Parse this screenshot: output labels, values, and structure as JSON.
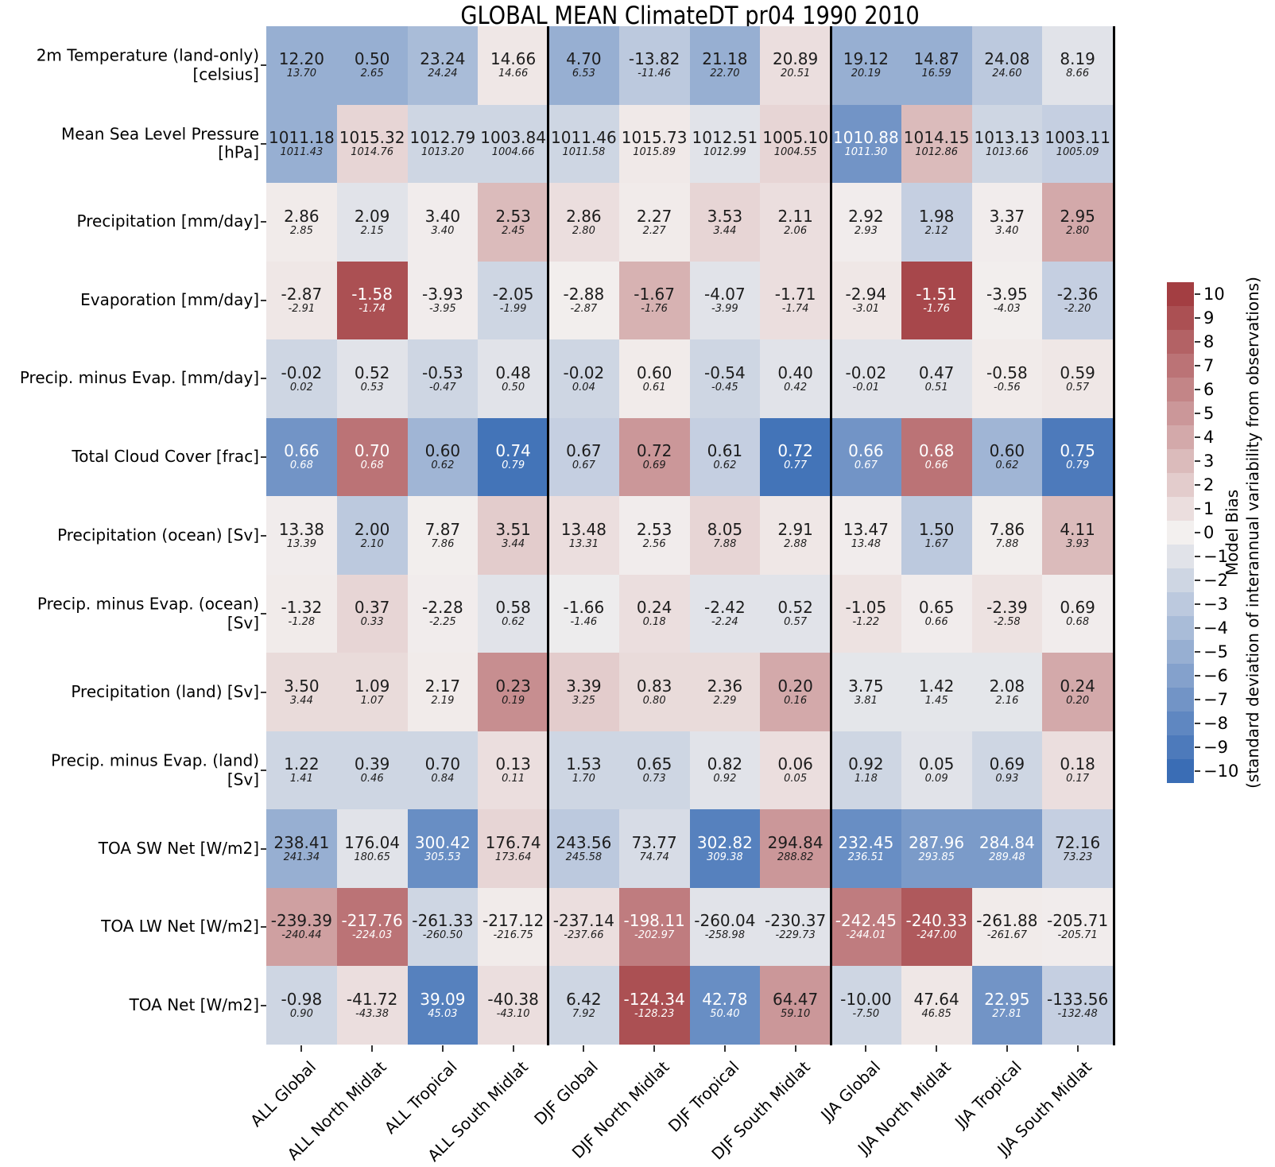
{
  "title": "GLOBAL MEAN ClimateDT pr04 1990 2010",
  "chart_data": {
    "type": "heatmap",
    "title": "GLOBAL MEAN ClimateDT pr04 1990 2010",
    "value_note": "each cell: top = model value, bottom italic = observed value; color = model bias in standard deviations of interannual variability",
    "columns": [
      "ALL Global",
      "ALL North Midlat",
      "ALL Tropical",
      "ALL South Midlat",
      "DJF Global",
      "DJF North Midlat",
      "DJF Tropical",
      "DJF South Midlat",
      "JJA Global",
      "JJA North Midlat",
      "JJA Tropical",
      "JJA South Midlat"
    ],
    "group_separators_after_column": [
      4,
      8
    ],
    "rows": [
      {
        "label": [
          "2m Temperature (land-only)",
          "[celsius]"
        ],
        "cells": [
          {
            "model": "12.20",
            "obs": "13.70",
            "bias": -5
          },
          {
            "model": "0.50",
            "obs": "2.65",
            "bias": -5
          },
          {
            "model": "23.24",
            "obs": "24.24",
            "bias": -4
          },
          {
            "model": "14.66",
            "obs": "14.66",
            "bias": 0.5
          },
          {
            "model": "4.70",
            "obs": "6.53",
            "bias": -5
          },
          {
            "model": "-13.82",
            "obs": "-11.46",
            "bias": -3
          },
          {
            "model": "21.18",
            "obs": "22.70",
            "bias": -5
          },
          {
            "model": "20.89",
            "obs": "20.51",
            "bias": 1
          },
          {
            "model": "19.12",
            "obs": "20.19",
            "bias": -5
          },
          {
            "model": "14.87",
            "obs": "16.59",
            "bias": -5
          },
          {
            "model": "24.08",
            "obs": "24.60",
            "bias": -3
          },
          {
            "model": "8.19",
            "obs": "8.66",
            "bias": -1
          }
        ]
      },
      {
        "label": [
          "Mean Sea Level Pressure",
          "[hPa]"
        ],
        "cells": [
          {
            "model": "1011.18",
            "obs": "1011.43",
            "bias": -5
          },
          {
            "model": "1015.32",
            "obs": "1014.76",
            "bias": 1.5
          },
          {
            "model": "1012.79",
            "obs": "1013.20",
            "bias": -2
          },
          {
            "model": "1003.84",
            "obs": "1004.66",
            "bias": -2
          },
          {
            "model": "1011.46",
            "obs": "1011.58",
            "bias": -2
          },
          {
            "model": "1015.73",
            "obs": "1015.89",
            "bias": 0.4
          },
          {
            "model": "1012.51",
            "obs": "1012.99",
            "bias": -1
          },
          {
            "model": "1005.10",
            "obs": "1004.55",
            "bias": 1.5
          },
          {
            "model": "1010.88",
            "obs": "1011.30",
            "bias": -7
          },
          {
            "model": "1014.15",
            "obs": "1012.86",
            "bias": 3
          },
          {
            "model": "1013.13",
            "obs": "1013.66",
            "bias": -2
          },
          {
            "model": "1003.11",
            "obs": "1005.09",
            "bias": -2.5
          }
        ]
      },
      {
        "label": [
          "Precipitation [mm/day]"
        ],
        "cells": [
          {
            "model": "2.86",
            "obs": "2.85",
            "bias": 0.3
          },
          {
            "model": "2.09",
            "obs": "2.15",
            "bias": -1
          },
          {
            "model": "3.40",
            "obs": "3.40",
            "bias": 0.2
          },
          {
            "model": "2.53",
            "obs": "2.45",
            "bias": 3
          },
          {
            "model": "2.86",
            "obs": "2.80",
            "bias": 1
          },
          {
            "model": "2.27",
            "obs": "2.27",
            "bias": 0.3
          },
          {
            "model": "3.53",
            "obs": "3.44",
            "bias": 1.5
          },
          {
            "model": "2.11",
            "obs": "2.06",
            "bias": 1
          },
          {
            "model": "2.92",
            "obs": "2.93",
            "bias": 0.2
          },
          {
            "model": "1.98",
            "obs": "2.12",
            "bias": -2.5
          },
          {
            "model": "3.37",
            "obs": "3.40",
            "bias": 0.2
          },
          {
            "model": "2.95",
            "obs": "2.80",
            "bias": 4
          }
        ]
      },
      {
        "label": [
          "Evaporation [mm/day]"
        ],
        "cells": [
          {
            "model": "-2.87",
            "obs": "-2.91",
            "bias": 0.5
          },
          {
            "model": "-1.58",
            "obs": "-1.74",
            "bias": 9
          },
          {
            "model": "-3.93",
            "obs": "-3.95",
            "bias": 0.2
          },
          {
            "model": "-2.05",
            "obs": "-1.99",
            "bias": -2
          },
          {
            "model": "-2.88",
            "obs": "-2.87",
            "bias": 0.1
          },
          {
            "model": "-1.67",
            "obs": "-1.76",
            "bias": 3.5
          },
          {
            "model": "-4.07",
            "obs": "-3.99",
            "bias": -1
          },
          {
            "model": "-1.71",
            "obs": "-1.74",
            "bias": 1
          },
          {
            "model": "-2.94",
            "obs": "-3.01",
            "bias": 0.5
          },
          {
            "model": "-1.51",
            "obs": "-1.76",
            "bias": 9.5
          },
          {
            "model": "-3.95",
            "obs": "-4.03",
            "bias": 0.1
          },
          {
            "model": "-2.36",
            "obs": "-2.20",
            "bias": -2.5
          }
        ]
      },
      {
        "label": [
          "Precip. minus Evap. [mm/day]"
        ],
        "cells": [
          {
            "model": "-0.02",
            "obs": "0.02",
            "bias": -2
          },
          {
            "model": "0.52",
            "obs": "0.53",
            "bias": -1
          },
          {
            "model": "-0.53",
            "obs": "-0.47",
            "bias": -2
          },
          {
            "model": "0.48",
            "obs": "0.50",
            "bias": -1
          },
          {
            "model": "-0.02",
            "obs": "0.04",
            "bias": -2
          },
          {
            "model": "0.60",
            "obs": "0.61",
            "bias": 0.3
          },
          {
            "model": "-0.54",
            "obs": "-0.45",
            "bias": -2
          },
          {
            "model": "0.40",
            "obs": "0.42",
            "bias": -1
          },
          {
            "model": "-0.02",
            "obs": "-0.01",
            "bias": -1
          },
          {
            "model": "0.47",
            "obs": "0.51",
            "bias": -1
          },
          {
            "model": "-0.58",
            "obs": "-0.56",
            "bias": 0.3
          },
          {
            "model": "0.59",
            "obs": "0.57",
            "bias": 0.5
          }
        ]
      },
      {
        "label": [
          "Total Cloud Cover [frac]"
        ],
        "cells": [
          {
            "model": "0.66",
            "obs": "0.68",
            "bias": -7
          },
          {
            "model": "0.70",
            "obs": "0.68",
            "bias": 7
          },
          {
            "model": "0.60",
            "obs": "0.62",
            "bias": -4.5
          },
          {
            "model": "0.74",
            "obs": "0.79",
            "bias": -9.5
          },
          {
            "model": "0.67",
            "obs": "0.67",
            "bias": -2.5
          },
          {
            "model": "0.72",
            "obs": "0.69",
            "bias": 5
          },
          {
            "model": "0.61",
            "obs": "0.62",
            "bias": -2.5
          },
          {
            "model": "0.72",
            "obs": "0.77",
            "bias": -9.5
          },
          {
            "model": "0.66",
            "obs": "0.67",
            "bias": -7
          },
          {
            "model": "0.68",
            "obs": "0.66",
            "bias": 7
          },
          {
            "model": "0.60",
            "obs": "0.62",
            "bias": -4.5
          },
          {
            "model": "0.75",
            "obs": "0.79",
            "bias": -9
          }
        ]
      },
      {
        "label": [
          "Precipitation (ocean) [Sv]"
        ],
        "cells": [
          {
            "model": "13.38",
            "obs": "13.39",
            "bias": 0.2
          },
          {
            "model": "2.00",
            "obs": "2.10",
            "bias": -3
          },
          {
            "model": "7.87",
            "obs": "7.86",
            "bias": 0.1
          },
          {
            "model": "3.51",
            "obs": "3.44",
            "bias": 2
          },
          {
            "model": "13.48",
            "obs": "13.31",
            "bias": 1
          },
          {
            "model": "2.53",
            "obs": "2.56",
            "bias": 0.2
          },
          {
            "model": "8.05",
            "obs": "7.88",
            "bias": 1.5
          },
          {
            "model": "2.91",
            "obs": "2.88",
            "bias": 0.5
          },
          {
            "model": "13.47",
            "obs": "13.48",
            "bias": 0.2
          },
          {
            "model": "1.50",
            "obs": "1.67",
            "bias": -3
          },
          {
            "model": "7.86",
            "obs": "7.88",
            "bias": 0.1
          },
          {
            "model": "4.11",
            "obs": "3.93",
            "bias": 3
          }
        ]
      },
      {
        "label": [
          "Precip. minus Evap. (ocean)",
          "[Sv]"
        ],
        "cells": [
          {
            "model": "-1.32",
            "obs": "-1.28",
            "bias": 0.3
          },
          {
            "model": "0.37",
            "obs": "0.33",
            "bias": 1.5
          },
          {
            "model": "-2.28",
            "obs": "-2.25",
            "bias": 0.2
          },
          {
            "model": "0.58",
            "obs": "0.62",
            "bias": -1
          },
          {
            "model": "-1.66",
            "obs": "-1.46",
            "bias": -0.3
          },
          {
            "model": "0.24",
            "obs": "0.18",
            "bias": 1
          },
          {
            "model": "-2.42",
            "obs": "-2.24",
            "bias": -1
          },
          {
            "model": "0.52",
            "obs": "0.57",
            "bias": -1
          },
          {
            "model": "-1.05",
            "obs": "-1.22",
            "bias": 0.8
          },
          {
            "model": "0.65",
            "obs": "0.66",
            "bias": 0.2
          },
          {
            "model": "-2.39",
            "obs": "-2.58",
            "bias": 0.8
          },
          {
            "model": "0.69",
            "obs": "0.68",
            "bias": 0.2
          }
        ]
      },
      {
        "label": [
          "Precipitation (land) [Sv]"
        ],
        "cells": [
          {
            "model": "3.50",
            "obs": "3.44",
            "bias": 1.2
          },
          {
            "model": "1.09",
            "obs": "1.07",
            "bias": 1.2
          },
          {
            "model": "2.17",
            "obs": "2.19",
            "bias": 0.3
          },
          {
            "model": "0.23",
            "obs": "0.19",
            "bias": 5.5
          },
          {
            "model": "3.39",
            "obs": "3.25",
            "bias": 2
          },
          {
            "model": "0.83",
            "obs": "0.80",
            "bias": 1.2
          },
          {
            "model": "2.36",
            "obs": "2.29",
            "bias": 1.2
          },
          {
            "model": "0.20",
            "obs": "0.16",
            "bias": 4
          },
          {
            "model": "3.75",
            "obs": "3.81",
            "bias": -0.8
          },
          {
            "model": "1.42",
            "obs": "1.45",
            "bias": -0.8
          },
          {
            "model": "2.08",
            "obs": "2.16",
            "bias": -0.8
          },
          {
            "model": "0.24",
            "obs": "0.20",
            "bias": 4
          }
        ]
      },
      {
        "label": [
          "Precip. minus Evap. (land)",
          "[Sv]"
        ],
        "cells": [
          {
            "model": "1.22",
            "obs": "1.41",
            "bias": -2
          },
          {
            "model": "0.39",
            "obs": "0.46",
            "bias": -2
          },
          {
            "model": "0.70",
            "obs": "0.84",
            "bias": -2
          },
          {
            "model": "0.13",
            "obs": "0.11",
            "bias": 1
          },
          {
            "model": "1.53",
            "obs": "1.70",
            "bias": -2
          },
          {
            "model": "0.65",
            "obs": "0.73",
            "bias": -2
          },
          {
            "model": "0.82",
            "obs": "0.92",
            "bias": -1
          },
          {
            "model": "0.06",
            "obs": "0.05",
            "bias": 1
          },
          {
            "model": "0.92",
            "obs": "1.18",
            "bias": -2
          },
          {
            "model": "0.05",
            "obs": "0.09",
            "bias": -1
          },
          {
            "model": "0.69",
            "obs": "0.93",
            "bias": -2
          },
          {
            "model": "0.18",
            "obs": "0.17",
            "bias": 1
          }
        ]
      },
      {
        "label": [
          "TOA SW Net [W/m2]"
        ],
        "cells": [
          {
            "model": "238.41",
            "obs": "241.34",
            "bias": -5
          },
          {
            "model": "176.04",
            "obs": "180.65",
            "bias": -1
          },
          {
            "model": "300.42",
            "obs": "305.53",
            "bias": -7.5
          },
          {
            "model": "176.74",
            "obs": "173.64",
            "bias": 1.5
          },
          {
            "model": "243.56",
            "obs": "245.58",
            "bias": -3
          },
          {
            "model": "73.77",
            "obs": "74.74",
            "bias": -1.5
          },
          {
            "model": "302.82",
            "obs": "309.38",
            "bias": -8.5
          },
          {
            "model": "294.84",
            "obs": "288.82",
            "bias": 5
          },
          {
            "model": "232.45",
            "obs": "236.51",
            "bias": -7.5
          },
          {
            "model": "287.96",
            "obs": "293.85",
            "bias": -6.5
          },
          {
            "model": "284.84",
            "obs": "289.48",
            "bias": -6.5
          },
          {
            "model": "72.16",
            "obs": "73.23",
            "bias": -2.5
          }
        ]
      },
      {
        "label": [
          "TOA LW Net [W/m2]"
        ],
        "cells": [
          {
            "model": "-239.39",
            "obs": "-240.44",
            "bias": 4.5
          },
          {
            "model": "-217.76",
            "obs": "-224.03",
            "bias": 7
          },
          {
            "model": "-261.33",
            "obs": "-260.50",
            "bias": -2
          },
          {
            "model": "-217.12",
            "obs": "-216.75",
            "bias": 0.3
          },
          {
            "model": "-237.14",
            "obs": "-237.66",
            "bias": 1
          },
          {
            "model": "-198.11",
            "obs": "-202.97",
            "bias": 6.5
          },
          {
            "model": "-260.04",
            "obs": "-258.98",
            "bias": -1
          },
          {
            "model": "-230.37",
            "obs": "-229.73",
            "bias": -1
          },
          {
            "model": "-242.45",
            "obs": "-244.01",
            "bias": 6.5
          },
          {
            "model": "-240.33",
            "obs": "-247.00",
            "bias": 8.5
          },
          {
            "model": "-261.88",
            "obs": "-261.67",
            "bias": 0.3
          },
          {
            "model": "-205.71",
            "obs": "-205.71",
            "bias": 0.2
          }
        ]
      },
      {
        "label": [
          "TOA Net [W/m2]"
        ],
        "cells": [
          {
            "model": "-0.98",
            "obs": "0.90",
            "bias": -2
          },
          {
            "model": "-41.72",
            "obs": "-43.38",
            "bias": 1
          },
          {
            "model": "39.09",
            "obs": "45.03",
            "bias": -8.5
          },
          {
            "model": "-40.38",
            "obs": "-43.10",
            "bias": 1
          },
          {
            "model": "6.42",
            "obs": "7.92",
            "bias": -2
          },
          {
            "model": "-124.34",
            "obs": "-128.23",
            "bias": 9
          },
          {
            "model": "42.78",
            "obs": "50.40",
            "bias": -7.5
          },
          {
            "model": "64.47",
            "obs": "59.10",
            "bias": 5
          },
          {
            "model": "-10.00",
            "obs": "-7.50",
            "bias": -2
          },
          {
            "model": "47.64",
            "obs": "46.85",
            "bias": 0.5
          },
          {
            "model": "22.95",
            "obs": "27.81",
            "bias": -7
          },
          {
            "model": "-133.56",
            "obs": "-132.48",
            "bias": -2.5
          }
        ]
      }
    ],
    "colorbar": {
      "label": "Model Bias",
      "sublabel": "(standard deviation of interannual variability from observations)",
      "ticks": [
        "10",
        "9",
        "8",
        "7",
        "6",
        "5",
        "4",
        "3",
        "2",
        "1",
        "0",
        "−1",
        "−2",
        "−3",
        "−4",
        "−5",
        "−6",
        "−7",
        "−8",
        "−9",
        "−10"
      ],
      "range": [
        -10,
        10
      ]
    },
    "colors": {
      "positive_max": "#a33e42",
      "negative_max": "#3a6db5",
      "center": "#f3f0ef",
      "separator": "#000000"
    }
  }
}
